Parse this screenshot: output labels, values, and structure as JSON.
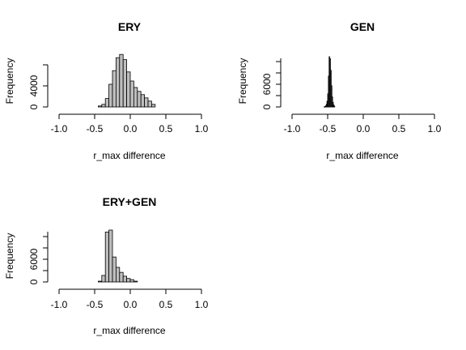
{
  "chart_data": [
    {
      "type": "bar",
      "title": "ERY",
      "xlabel": "r_max difference",
      "ylabel": "Frequency",
      "xlim": [
        -1.0,
        1.0
      ],
      "xticks": [
        "-1.0",
        "-0.5",
        "0.0",
        "0.5",
        "1.0"
      ],
      "yticks": [
        0,
        4000
      ],
      "ylim": [
        0,
        8000
      ],
      "bin_width": 0.05,
      "bin_start": -0.45,
      "values": [
        150,
        400,
        1300,
        3500,
        5600,
        7600,
        8100,
        7300,
        5400,
        4000,
        3000,
        2400,
        1900,
        1400,
        900,
        400
      ]
    },
    {
      "type": "bar",
      "title": "GEN",
      "xlabel": "r_max difference",
      "ylabel": "Frequency",
      "xlim": [
        -1.0,
        1.0
      ],
      "xticks": [
        "-1.0",
        "-0.5",
        "0.0",
        "0.5",
        "1.0"
      ],
      "yticks": [
        0,
        6000
      ],
      "ylim": [
        0,
        13000
      ],
      "bin_width": 0.01,
      "bin_start": -0.55,
      "values": [
        50,
        100,
        300,
        700,
        1500,
        3400,
        8000,
        13000,
        12500,
        9500,
        5500,
        2600,
        1200,
        500,
        200
      ]
    },
    {
      "type": "bar",
      "title": "ERY+GEN",
      "xlabel": "r_max difference",
      "ylabel": "Frequency",
      "xlim": [
        -1.0,
        1.0
      ],
      "xticks": [
        "-1.0",
        "-0.5",
        "0.0",
        "0.5",
        "1.0"
      ],
      "yticks": [
        0,
        6000
      ],
      "ylim": [
        0,
        13500
      ],
      "bin_width": 0.05,
      "bin_start": -0.45,
      "values": [
        200,
        1700,
        13000,
        13500,
        6500,
        3800,
        2500,
        1500,
        900,
        600,
        200
      ]
    }
  ]
}
